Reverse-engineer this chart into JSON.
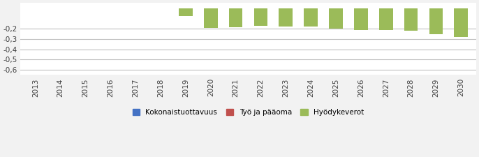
{
  "years": [
    2013,
    2014,
    2015,
    2016,
    2017,
    2018,
    2019,
    2020,
    2021,
    2022,
    2023,
    2024,
    2025,
    2026,
    2027,
    2028,
    2029,
    2030
  ],
  "kokonaistuottavuus": [
    0,
    0,
    0,
    0,
    0,
    0,
    0,
    0,
    0,
    0,
    0,
    0,
    0,
    0,
    0,
    0,
    0,
    0
  ],
  "tyo_ja_paaoma": [
    0,
    0,
    0,
    0,
    0,
    0,
    0,
    0,
    0,
    0,
    0,
    0,
    0,
    0,
    0,
    0,
    0,
    0
  ],
  "hyodykeverot": [
    0,
    0,
    0,
    0,
    0,
    0,
    -0.08,
    -0.19,
    -0.185,
    -0.175,
    -0.18,
    -0.18,
    -0.2,
    -0.21,
    -0.215,
    -0.22,
    -0.255,
    -0.28
  ],
  "bar_color_kokonaistuottavuus": "#4472c4",
  "bar_color_tyo": "#c0504d",
  "bar_color_hyodykeverot": "#9bbb59",
  "ylim_min": -0.65,
  "ylim_max": 0.05,
  "yticks": [
    -0.6,
    -0.5,
    -0.4,
    -0.3,
    -0.2
  ],
  "ytick_labels": [
    "-0,6",
    "-0,5",
    "-0,4",
    "-0,3",
    "-0,2"
  ],
  "legend_labels": [
    "Kokonaistuottavuus",
    "Työ ja pääoma",
    "Hyödykeverot"
  ],
  "background_color": "#f2f2f2",
  "plot_bg_color": "#ffffff",
  "grid_color": "#c0c0c0",
  "bar_width": 0.55,
  "tick_fontsize": 7.5,
  "legend_fontsize": 7.5
}
